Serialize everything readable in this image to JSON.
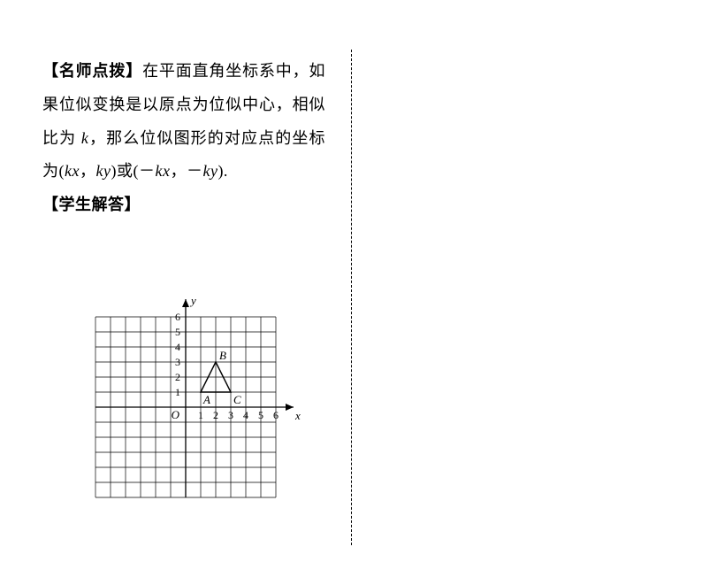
{
  "text": {
    "heading1_open": "【",
    "heading1_label": "名师点拨",
    "heading1_close": "】",
    "body_part1": "在平面直角坐标系中，如果位似变换是以原点为位似中心，相似比为 ",
    "body_k": "k",
    "body_part2": "，那么位似图形的对应点的坐标为(",
    "body_kx1": "kx",
    "body_comma1": "，",
    "body_ky1": "ky",
    "body_part3": ")或(－",
    "body_kx2": "kx",
    "body_comma2": "，－",
    "body_ky2": "ky",
    "body_part4": ").",
    "heading2_open": "【",
    "heading2_label": "学生解答",
    "heading2_close": "】"
  },
  "figure": {
    "type": "grid-chart",
    "cell": 17,
    "x_min": -6,
    "x_max": 6,
    "y_min": -6,
    "y_max": 6,
    "grid_color": "#000000",
    "background_color": "#ffffff",
    "axis_color": "#000000",
    "tick_labels_x": [
      "1",
      "2",
      "3",
      "4",
      "5",
      "6"
    ],
    "tick_labels_y": [
      "1",
      "2",
      "3",
      "4",
      "5",
      "6"
    ],
    "origin_label": "O",
    "x_axis_label": "x",
    "y_axis_label": "y",
    "triangle": {
      "points": [
        [
          1,
          1
        ],
        [
          2,
          3
        ],
        [
          3,
          1
        ]
      ],
      "labels": [
        "A",
        "B",
        "C"
      ],
      "stroke": "#000000",
      "fill": "none"
    },
    "label_fontsize": 13,
    "tick_fontsize": 12
  }
}
